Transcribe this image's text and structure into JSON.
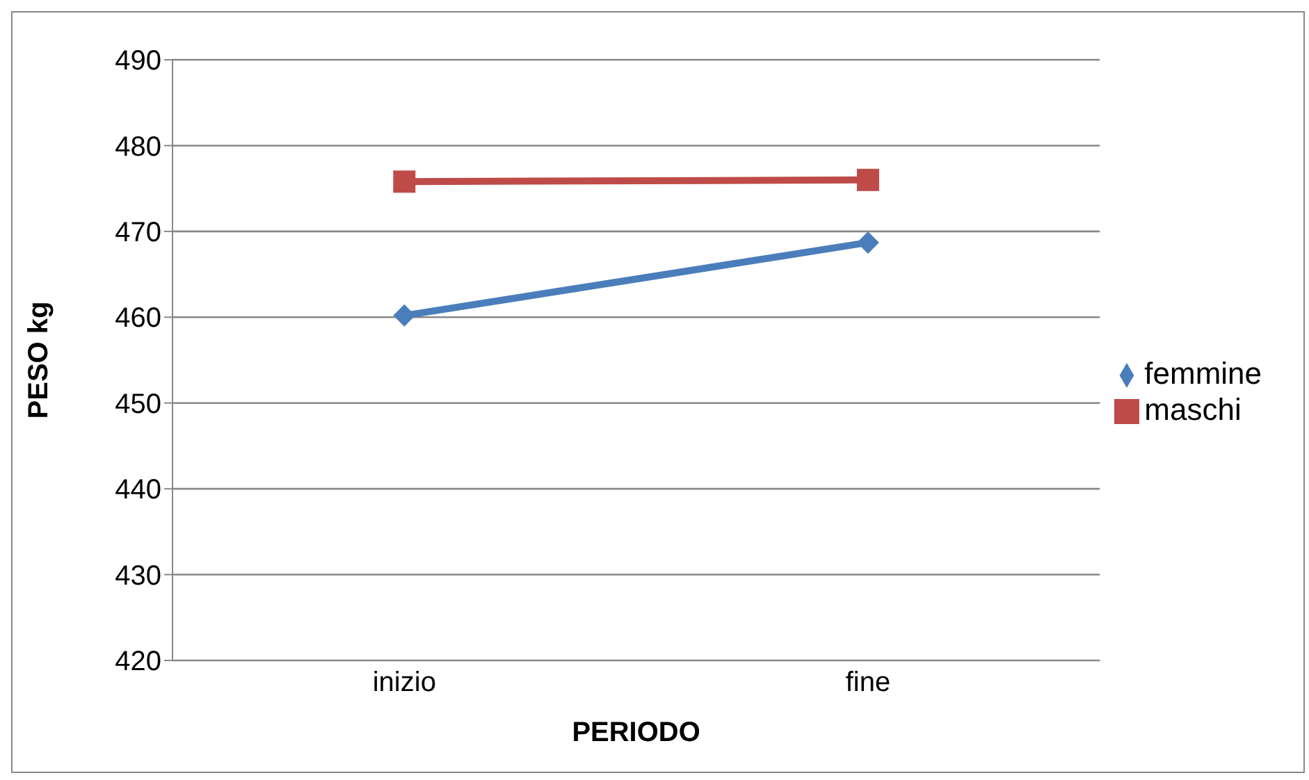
{
  "chart_data": {
    "type": "line",
    "xlabel": "PERIODO",
    "ylabel": "PESO kg",
    "categories": [
      "inizio",
      "fine"
    ],
    "series": [
      {
        "name": "femmine",
        "color": "#4a7ebb",
        "values": [
          460.2,
          468.7
        ],
        "marker": "diamond"
      },
      {
        "name": "maschi",
        "color": "#be4b48",
        "values": [
          475.8,
          476.0
        ],
        "marker": "square"
      }
    ],
    "ylim": [
      420,
      490
    ],
    "yticks": [
      420,
      430,
      440,
      450,
      460,
      470,
      480,
      490
    ],
    "grid": "y",
    "legend": "right",
    "line_style": "solid"
  }
}
